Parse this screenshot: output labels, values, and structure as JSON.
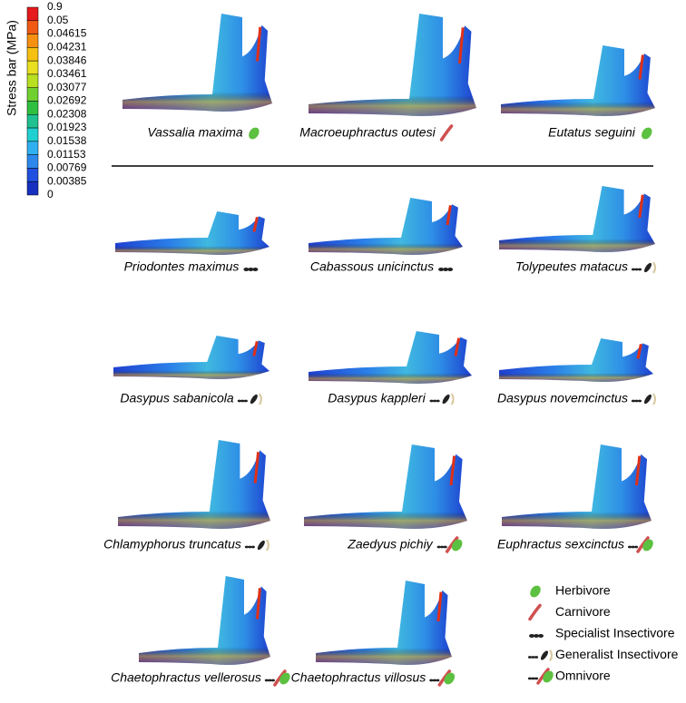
{
  "colorbar": {
    "title": "Stress bar (MPa)",
    "labels": [
      "0.9",
      "0.05",
      "0.04615",
      "0.04231",
      "0.03846",
      "0.03461",
      "0.03077",
      "0.02692",
      "0.02308",
      "0.01923",
      "0.01538",
      "0.01153",
      "0.00769",
      "0.00385",
      "0"
    ]
  },
  "specimens": [
    {
      "name": "Vassalia maxima",
      "diet": "Herbivore"
    },
    {
      "name": "Macroeuphractus outesi",
      "diet": "Carnivore"
    },
    {
      "name": "Eutatus seguini",
      "diet": "Herbivore"
    },
    {
      "name": "Priodontes maximus",
      "diet": "Specialist Insectivore"
    },
    {
      "name": "Cabassous unicinctus",
      "diet": "Specialist Insectivore"
    },
    {
      "name": "Tolypeutes matacus",
      "diet": "Generalist Insectivore"
    },
    {
      "name": "Dasypus sabanicola",
      "diet": "Generalist Insectivore"
    },
    {
      "name": "Dasypus kappleri",
      "diet": "Generalist Insectivore"
    },
    {
      "name": "Dasypus  novemcinctus",
      "diet": "Generalist Insectivore"
    },
    {
      "name": "Chlamyphorus truncatus",
      "diet": "Generalist Insectivore"
    },
    {
      "name": "Zaedyus pichiy",
      "diet": "Omnivore"
    },
    {
      "name": "Euphractus sexcinctus",
      "diet": "Omnivore"
    },
    {
      "name": "Chaetophractus vellerosus",
      "diet": "Omnivore"
    },
    {
      "name": "Chaetophractus villosus",
      "diet": "Omnivore"
    }
  ],
  "legend": [
    "Herbivore",
    "Carnivore",
    "Specialist Insectivore",
    "Generalist Insectivore",
    "Omnivore"
  ]
}
